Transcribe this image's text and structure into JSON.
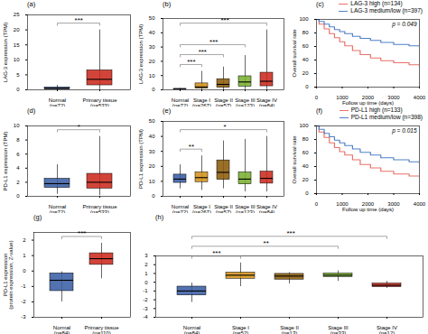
{
  "chart_data": [
    {
      "type": "box",
      "title": "(a)",
      "ylabel": "LAG-3 expression (TPM)",
      "categories": [
        "Normal\n(n=72)",
        "Primary tissue\n(n=533)"
      ],
      "colors": [
        "#3a5fa5",
        "#cc2a1e"
      ],
      "median": [
        0.5,
        3.5
      ],
      "q1": [
        0.2,
        1.5
      ],
      "q3": [
        0.8,
        6.5
      ],
      "whislo": [
        0.02,
        0.05
      ],
      "whishi": [
        1.5,
        20.0
      ],
      "ylim": [
        0,
        25
      ],
      "yticks": [
        0,
        5,
        10,
        15,
        20,
        25
      ],
      "annotations": [
        {
          "text": "***",
          "from": "Normal\n(n=72)",
          "to": "Primary tissue\n(n=533)"
        }
      ]
    },
    {
      "type": "box",
      "title": "(b)",
      "ylabel": "LAG-3 expression (TPM)",
      "categories": [
        "Normal\n(n=72)",
        "Stage I\n(n=267)",
        "Stage II\n(n=57)",
        "Stage III\n(n=123)",
        "Stage IV\n(n=84)"
      ],
      "colors": [
        "#3a5fa5",
        "#d4921a",
        "#8b5c0a",
        "#7ab030",
        "#cc2a1e"
      ],
      "median": [
        0.4,
        2.0,
        3.8,
        5.5,
        6.0
      ],
      "q1": [
        0.1,
        0.8,
        1.5,
        2.2,
        2.5
      ],
      "q3": [
        0.7,
        4.5,
        7.5,
        9.5,
        12.0
      ],
      "whislo": [
        0.01,
        0.05,
        0.1,
        0.2,
        0.2
      ],
      "whishi": [
        1.0,
        13.0,
        16.0,
        24.0,
        42.0
      ],
      "ylim": [
        0,
        50
      ],
      "yticks": [
        0,
        10,
        20,
        30,
        40,
        50
      ],
      "annotations": [
        {
          "text": "***",
          "from": "Normal\n(n=72)",
          "to": "Stage I\n(n=267)"
        },
        {
          "text": "***",
          "from": "Normal\n(n=72)",
          "to": "Stage II\n(n=57)"
        },
        {
          "text": "***",
          "from": "Normal\n(n=72)",
          "to": "Stage III\n(n=123)"
        },
        {
          "text": "***",
          "from": "Normal\n(n=72)",
          "to": "Stage IV\n(n=84)"
        }
      ]
    },
    {
      "type": "step",
      "title": "(c)",
      "xlabel": "Follow up time (days)",
      "ylabel": "Overall survival rate",
      "x": [
        0,
        100,
        300,
        500,
        700,
        900,
        1100,
        1400,
        1700,
        2100,
        2500,
        3000,
        3600,
        4000
      ],
      "series": [
        {
          "name": "LAG-3 high (n=134)",
          "color": "#e8726a",
          "values": [
            100,
            93,
            86,
            79,
            73,
            67,
            61,
            54,
            48,
            43,
            39,
            36,
            33,
            31
          ]
        },
        {
          "name": "LAG-3 medium/low (n=397)",
          "color": "#5080c8",
          "values": [
            100,
            97,
            93,
            89,
            85,
            82,
            79,
            75,
            72,
            69,
            66,
            63,
            61,
            59
          ]
        }
      ],
      "xlim": [
        0,
        4000
      ],
      "xticks": [
        0,
        1000,
        2000,
        3000,
        4000
      ],
      "ylim": [
        0,
        100
      ],
      "yticks": [
        0,
        20,
        40,
        60,
        80,
        100
      ],
      "annotations": [
        "p = 0.049"
      ],
      "legend": "upper right"
    },
    {
      "type": "box",
      "title": "(d)",
      "ylabel": "PD-L1 expression (TPM)",
      "categories": [
        "Normal\n(n=72)",
        "Primary tissue\n(n=533)"
      ],
      "colors": [
        "#3a5fa5",
        "#cc2a1e"
      ],
      "median": [
        1.8,
        2.0
      ],
      "q1": [
        1.2,
        1.1
      ],
      "q3": [
        2.5,
        3.2
      ],
      "whislo": [
        0.3,
        0.1
      ],
      "whishi": [
        4.5,
        8.5
      ],
      "ylim": [
        0,
        10
      ],
      "yticks": [
        0,
        2,
        4,
        6,
        8,
        10
      ],
      "annotations": [
        {
          "text": "*",
          "from": "Normal\n(n=72)",
          "to": "Primary tissue\n(n=533)"
        }
      ]
    },
    {
      "type": "box",
      "title": "(e)",
      "ylabel": "PD-L1 expression (TPM)",
      "categories": [
        "Normal\n(n=72)",
        "Stage I\n(n=267)",
        "Stage II\n(n=57)",
        "Stage III\n(n=123)",
        "Stage IV\n(n=84)"
      ],
      "colors": [
        "#3a5fa5",
        "#d4921a",
        "#8b5c0a",
        "#7ab030",
        "#cc2a1e"
      ],
      "median": [
        11.5,
        12.5,
        16.0,
        11.5,
        12.0
      ],
      "q1": [
        9.0,
        9.5,
        11.0,
        8.0,
        8.5
      ],
      "q3": [
        14.5,
        16.0,
        24.0,
        16.0,
        16.5
      ],
      "whislo": [
        5.0,
        4.0,
        5.0,
        3.0,
        3.0
      ],
      "whishi": [
        21.0,
        27.0,
        37.0,
        38.0,
        40.0
      ],
      "ylim": [
        0,
        50
      ],
      "yticks": [
        0,
        10,
        20,
        30,
        40,
        50
      ],
      "annotations": [
        {
          "text": "**",
          "from": "Normal\n(n=72)",
          "to": "Stage I\n(n=267)"
        },
        {
          "text": "*",
          "from": "Normal\n(n=72)",
          "to": "Stage IV\n(n=84)"
        }
      ]
    },
    {
      "type": "step",
      "title": "(f)",
      "xlabel": "Follow up time (days)",
      "ylabel": "Overall survival rate",
      "x": [
        0,
        100,
        300,
        500,
        700,
        900,
        1100,
        1400,
        1700,
        2100,
        2500,
        3000,
        3600,
        4000
      ],
      "series": [
        {
          "name": "PD-L1 high (n=133)",
          "color": "#e8726a",
          "values": [
            100,
            91,
            83,
            75,
            68,
            62,
            57,
            50,
            43,
            38,
            33,
            29,
            26,
            24
          ]
        },
        {
          "name": "PD-L1 medium/low (n=398)",
          "color": "#5080c8",
          "values": [
            100,
            95,
            89,
            84,
            79,
            75,
            71,
            66,
            61,
            57,
            53,
            50,
            47,
            44
          ]
        }
      ],
      "xlim": [
        0,
        4000
      ],
      "xticks": [
        0,
        1000,
        2000,
        3000,
        4000
      ],
      "ylim": [
        0,
        100
      ],
      "yticks": [
        0,
        20,
        40,
        60,
        80,
        100
      ],
      "annotations": [
        "p = 0.015"
      ],
      "legend": "upper right"
    },
    {
      "type": "box",
      "title": "(g)",
      "ylabel": "PD-L1 expression\n(protein expression, Z-value)",
      "categories": [
        "Normal\n(n=84)",
        "Primary tissue\n(n=110)"
      ],
      "colors": [
        "#3a5fa5",
        "#cc2a1e"
      ],
      "median": [
        -0.6,
        0.8
      ],
      "q1": [
        -1.3,
        0.4
      ],
      "q3": [
        -0.15,
        1.15
      ],
      "whislo": [
        -2.0,
        -0.5
      ],
      "whishi": [
        -0.05,
        1.8
      ],
      "ylim": [
        -3,
        2.5
      ],
      "yticks": [
        -3,
        -2,
        -1,
        0,
        1,
        2
      ],
      "annotations": [
        {
          "text": "***",
          "from": "Normal\n(n=84)",
          "to": "Primary tissue\n(n=110)"
        }
      ]
    },
    {
      "type": "box",
      "title": "(h)",
      "categories": [
        "Normal\n(n=84)",
        "Stage I\n(n=52)",
        "Stage II\n(n=13)",
        "Stage III\n(n=33)",
        "Stage IV\n(n=12)"
      ],
      "colors": [
        "#3a5fa5",
        "#d4921a",
        "#8b5c0a",
        "#7ab030",
        "#cc2a1e"
      ],
      "median": [
        -1.0,
        0.8,
        0.7,
        0.8,
        -0.35
      ],
      "q1": [
        -1.5,
        0.4,
        0.3,
        0.6,
        -0.55
      ],
      "q3": [
        -0.5,
        1.1,
        0.95,
        1.0,
        -0.15
      ],
      "whislo": [
        -2.3,
        -0.5,
        -0.2,
        0.1,
        -0.7
      ],
      "whishi": [
        -0.1,
        2.2,
        1.1,
        1.3,
        0.1
      ],
      "ylim": [
        -4,
        3
      ],
      "yticks": [
        -4,
        -3,
        -2,
        -1,
        0,
        1,
        2,
        3
      ],
      "annotations": [
        {
          "text": "***",
          "from": "Normal\n(n=84)",
          "to": "Stage I\n(n=52)"
        },
        {
          "text": "**",
          "from": "Normal\n(n=84)",
          "to": "Stage III\n(n=33)"
        },
        {
          "text": "***",
          "from": "Normal\n(n=84)",
          "to": "Stage IV\n(n=12)"
        }
      ]
    }
  ]
}
